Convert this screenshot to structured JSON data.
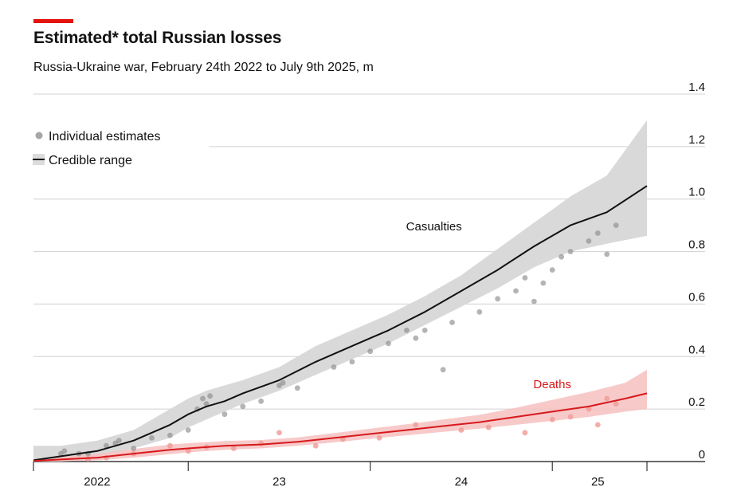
{
  "header": {
    "title": "Estimated* total Russian losses",
    "subtitle": "Russia-Ukraine war, February 24th 2022 to July 9th 2025, m"
  },
  "colors": {
    "accent": "#e3120b",
    "casualties_line": "#111111",
    "casualties_band": "#d9d9d9",
    "casualties_points": "#8c8c8c",
    "deaths_line": "#d7191c",
    "deaths_band": "#f6c1bf",
    "deaths_points": "#f09a96",
    "grid": "#d0d0d0"
  },
  "legend": {
    "points_label": "Individual estimates",
    "range_label": "Credible range"
  },
  "chart_data": {
    "type": "line",
    "x_unit": "year (fractional)",
    "xlim": [
      2022.15,
      2025.52
    ],
    "ylim": [
      0,
      1.4
    ],
    "y_ticks": [
      {
        "value": 1.4,
        "label": "1.4"
      },
      {
        "value": 1.2,
        "label": "1.2"
      },
      {
        "value": 1.0,
        "label": "1.0"
      },
      {
        "value": 0.8,
        "label": "0.8"
      },
      {
        "value": 0.6,
        "label": "0.6"
      },
      {
        "value": 0.4,
        "label": "0.4"
      },
      {
        "value": 0.2,
        "label": "0.2"
      },
      {
        "value": 0.0,
        "label": "0"
      }
    ],
    "x_boundaries": [
      2022.15,
      2023.0,
      2024.0,
      2025.0,
      2025.52
    ],
    "x_labels": [
      {
        "x": 2022.5,
        "label": "2022"
      },
      {
        "x": 2023.5,
        "label": "23"
      },
      {
        "x": 2024.5,
        "label": "24"
      },
      {
        "x": 2025.25,
        "label": "25"
      }
    ],
    "grid": true,
    "legend_position": "top-left",
    "series": [
      {
        "name": "Casualties",
        "x": [
          2022.15,
          2022.3,
          2022.5,
          2022.7,
          2022.9,
          2023.0,
          2023.1,
          2023.2,
          2023.3,
          2023.5,
          2023.7,
          2023.9,
          2024.0,
          2024.1,
          2024.3,
          2024.5,
          2024.7,
          2024.9,
          2025.0,
          2025.1,
          2025.3,
          2025.52
        ],
        "y": [
          0.005,
          0.02,
          0.04,
          0.08,
          0.14,
          0.18,
          0.21,
          0.23,
          0.26,
          0.31,
          0.38,
          0.44,
          0.47,
          0.5,
          0.57,
          0.65,
          0.73,
          0.82,
          0.86,
          0.9,
          0.95,
          1.05
        ],
        "lower": [
          0.0,
          0.0,
          0.02,
          0.05,
          0.09,
          0.13,
          0.16,
          0.19,
          0.22,
          0.27,
          0.33,
          0.39,
          0.42,
          0.45,
          0.52,
          0.59,
          0.66,
          0.74,
          0.77,
          0.8,
          0.83,
          0.86
        ],
        "upper": [
          0.06,
          0.06,
          0.08,
          0.12,
          0.2,
          0.24,
          0.27,
          0.29,
          0.31,
          0.36,
          0.44,
          0.5,
          0.53,
          0.56,
          0.63,
          0.71,
          0.81,
          0.91,
          0.96,
          1.01,
          1.09,
          1.3
        ],
        "points": [
          [
            2022.3,
            0.03
          ],
          [
            2022.32,
            0.04
          ],
          [
            2022.4,
            0.03
          ],
          [
            2022.45,
            0.03
          ],
          [
            2022.55,
            0.06
          ],
          [
            2022.6,
            0.07
          ],
          [
            2022.62,
            0.08
          ],
          [
            2022.7,
            0.05
          ],
          [
            2022.8,
            0.09
          ],
          [
            2022.9,
            0.1
          ],
          [
            2023.0,
            0.12
          ],
          [
            2023.05,
            0.2
          ],
          [
            2023.08,
            0.24
          ],
          [
            2023.1,
            0.22
          ],
          [
            2023.12,
            0.25
          ],
          [
            2023.2,
            0.18
          ],
          [
            2023.3,
            0.21
          ],
          [
            2023.4,
            0.23
          ],
          [
            2023.5,
            0.29
          ],
          [
            2023.52,
            0.3
          ],
          [
            2023.6,
            0.28
          ],
          [
            2023.8,
            0.36
          ],
          [
            2023.9,
            0.38
          ],
          [
            2024.0,
            0.42
          ],
          [
            2024.1,
            0.45
          ],
          [
            2024.2,
            0.5
          ],
          [
            2024.25,
            0.47
          ],
          [
            2024.3,
            0.5
          ],
          [
            2024.4,
            0.35
          ],
          [
            2024.45,
            0.53
          ],
          [
            2024.6,
            0.57
          ],
          [
            2024.7,
            0.62
          ],
          [
            2024.8,
            0.65
          ],
          [
            2024.85,
            0.7
          ],
          [
            2024.9,
            0.61
          ],
          [
            2024.95,
            0.68
          ],
          [
            2025.0,
            0.73
          ],
          [
            2025.05,
            0.78
          ],
          [
            2025.1,
            0.8
          ],
          [
            2025.2,
            0.84
          ],
          [
            2025.25,
            0.87
          ],
          [
            2025.3,
            0.79
          ],
          [
            2025.35,
            0.9
          ]
        ]
      },
      {
        "name": "Deaths",
        "x": [
          2022.15,
          2022.3,
          2022.5,
          2022.7,
          2022.9,
          2023.0,
          2023.2,
          2023.4,
          2023.6,
          2023.8,
          2024.0,
          2024.2,
          2024.4,
          2024.6,
          2024.8,
          2025.0,
          2025.2,
          2025.4,
          2025.52
        ],
        "y": [
          0.002,
          0.008,
          0.015,
          0.03,
          0.045,
          0.05,
          0.06,
          0.065,
          0.075,
          0.09,
          0.105,
          0.12,
          0.135,
          0.15,
          0.17,
          0.19,
          0.21,
          0.24,
          0.26
        ],
        "lower": [
          0.0,
          0.0,
          0.005,
          0.015,
          0.028,
          0.035,
          0.045,
          0.05,
          0.06,
          0.073,
          0.087,
          0.1,
          0.113,
          0.125,
          0.14,
          0.155,
          0.17,
          0.19,
          0.2
        ],
        "upper": [
          0.01,
          0.018,
          0.03,
          0.048,
          0.065,
          0.07,
          0.078,
          0.082,
          0.092,
          0.108,
          0.125,
          0.142,
          0.16,
          0.178,
          0.205,
          0.235,
          0.265,
          0.3,
          0.35
        ],
        "points": [
          [
            2022.45,
            0.01
          ],
          [
            2022.55,
            0.015
          ],
          [
            2022.7,
            0.03
          ],
          [
            2022.9,
            0.06
          ],
          [
            2023.0,
            0.04
          ],
          [
            2023.1,
            0.055
          ],
          [
            2023.25,
            0.05
          ],
          [
            2023.4,
            0.07
          ],
          [
            2023.5,
            0.11
          ],
          [
            2023.7,
            0.06
          ],
          [
            2023.85,
            0.085
          ],
          [
            2024.05,
            0.09
          ],
          [
            2024.25,
            0.14
          ],
          [
            2024.5,
            0.12
          ],
          [
            2024.65,
            0.13
          ],
          [
            2024.85,
            0.11
          ],
          [
            2025.0,
            0.16
          ],
          [
            2025.1,
            0.17
          ],
          [
            2025.2,
            0.2
          ],
          [
            2025.25,
            0.14
          ],
          [
            2025.3,
            0.24
          ],
          [
            2025.35,
            0.22
          ]
        ]
      }
    ],
    "annotations": [
      {
        "series": "Casualties",
        "text": "Casualties",
        "x": 2024.35,
        "y": 0.88
      },
      {
        "series": "Deaths",
        "text": "Deaths",
        "x": 2025.0,
        "y": 0.28
      }
    ]
  }
}
